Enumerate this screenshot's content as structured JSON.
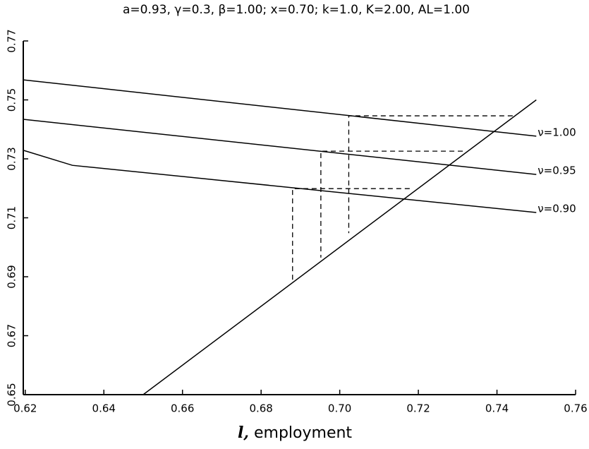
{
  "chart_data": {
    "type": "line",
    "title": "a=0.93, γ=0.3, β=1.00; x=0.70; k=1.0, K=2.00, AL=1.00",
    "x_label_symbol": "l,",
    "x_label": "employment",
    "xlim": [
      0.6195,
      0.76
    ],
    "ylim": [
      0.65,
      0.77
    ],
    "xticks": [
      0.62,
      0.64,
      0.66,
      0.68,
      {
        "value": 0.7,
        "label": "0.70"
      },
      0.72,
      0.74,
      0.76
    ],
    "yticks": [
      0.65,
      0.67,
      0.69,
      0.71,
      0.73,
      0.75,
      0.77
    ],
    "series": [
      {
        "name": "ν=1.00",
        "color": "#000000",
        "x": [
          0.6195,
          0.75
        ],
        "values": [
          0.7568,
          0.7377
        ]
      },
      {
        "name": "ν=0.95",
        "color": "#000000",
        "x": [
          0.6195,
          0.75
        ],
        "values": [
          0.7434,
          0.7247
        ]
      },
      {
        "name": "ν=0.90",
        "color": "#000000",
        "x": [
          0.6195,
          0.632,
          0.75
        ],
        "values": [
          0.7329,
          0.7278,
          0.7118
        ]
      },
      {
        "color": "#000000",
        "x": [
          0.65,
          0.75
        ],
        "values": [
          0.65,
          0.75
        ]
      }
    ],
    "guides": [
      {
        "x": [
          0.744,
          0.7023,
          0.7023
        ],
        "values": [
          0.7446,
          0.7446,
          0.7048
        ]
      },
      {
        "x": [
          0.7313,
          0.6952,
          0.6952
        ],
        "values": [
          0.7326,
          0.7326,
          0.6965
        ]
      },
      {
        "x": [
          0.7178,
          0.688,
          0.688
        ],
        "values": [
          0.7199,
          0.7199,
          0.6883
        ]
      }
    ]
  }
}
